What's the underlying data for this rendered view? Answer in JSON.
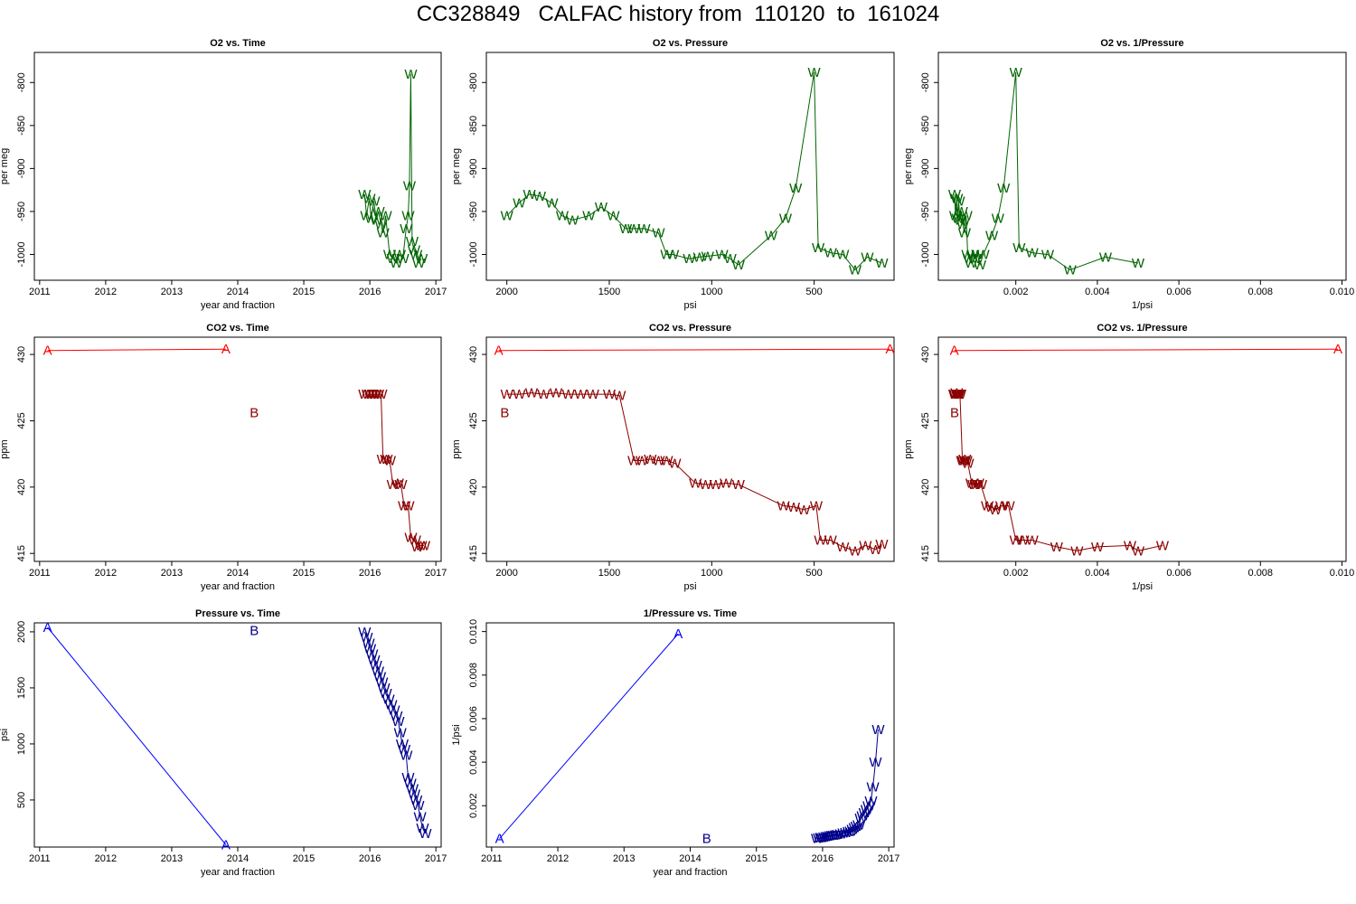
{
  "page": {
    "title": "CC328849   CALFAC history from  110120  to  161024"
  },
  "colors": {
    "o2": "#006400",
    "co2_w": "#8b0000",
    "co2_ab": "#ff0000",
    "pressure": "#00008b",
    "pressure_ab": "#0000ff"
  },
  "chart_data": [
    {
      "id": "o2_time",
      "type": "line",
      "title": "O2 vs. Time",
      "xlabel": "year and fraction",
      "ylabel": "per meg",
      "xlim": [
        2010.92,
        2017.08
      ],
      "ylim": [
        -1030,
        -765
      ],
      "reverse_x": false,
      "xticks": [
        2011,
        2012,
        2013,
        2014,
        2015,
        2016,
        2017
      ],
      "xtick_labels": [
        "2011",
        "2012",
        "2013",
        "2014",
        "2015",
        "2016",
        "2017"
      ],
      "yticks": [
        -800,
        -850,
        -900,
        -950,
        -1000
      ],
      "ytick_labels": [
        "-800",
        "-850",
        "-900",
        "-950",
        "-1000"
      ],
      "series": [
        {
          "name": "W",
          "color": "#006400",
          "marker": "W",
          "x": [
            2015.92,
            2015.95,
            2015.99,
            2016.02,
            2016.06,
            2016.1,
            2016.13,
            2016.17,
            2016.2,
            2016.24,
            2016.3,
            2016.35,
            2016.4,
            2016.45,
            2016.5,
            2016.55,
            2016.58,
            2016.6,
            2016.62,
            2016.64,
            2016.67,
            2016.7,
            2016.74,
            2016.78
          ],
          "y": [
            -930,
            -955,
            -935,
            -958,
            -938,
            -960,
            -950,
            -965,
            -975,
            -955,
            -1000,
            -1005,
            -1010,
            -1000,
            -1005,
            -970,
            -955,
            -920,
            -790,
            -985,
            -995,
            -1000,
            -1010,
            -1005
          ]
        }
      ]
    },
    {
      "id": "o2_pressure",
      "type": "line",
      "title": "O2 vs. Pressure",
      "xlabel": "psi",
      "ylabel": "per meg",
      "xlim": [
        2100,
        110
      ],
      "ylim": [
        -1030,
        -765
      ],
      "reverse_x": true,
      "xticks": [
        2000,
        1500,
        1000,
        500
      ],
      "xtick_labels": [
        "2000",
        "1500",
        "1000",
        "500"
      ],
      "yticks": [
        -800,
        -850,
        -900,
        -950,
        -1000
      ],
      "ytick_labels": [
        "-800",
        "-850",
        "-900",
        "-950",
        "-1000"
      ],
      "series": [
        {
          "name": "W",
          "color": "#006400",
          "marker": "W",
          "x": [
            2000,
            1940,
            1890,
            1840,
            1780,
            1730,
            1680,
            1600,
            1540,
            1480,
            1420,
            1380,
            1330,
            1260,
            1220,
            1190,
            1110,
            1060,
            1020,
            950,
            910,
            870,
            710,
            640,
            590,
            500,
            480,
            420,
            360,
            300,
            240,
            170
          ],
          "y": [
            -955,
            -940,
            -930,
            -932,
            -940,
            -955,
            -960,
            -955,
            -945,
            -955,
            -970,
            -970,
            -970,
            -975,
            -1000,
            -1000,
            -1005,
            -1003,
            -1002,
            -1000,
            -1005,
            -1012,
            -978,
            -958,
            -923,
            -788,
            -992,
            -998,
            -1000,
            -1018,
            -1003,
            -1010
          ]
        }
      ]
    },
    {
      "id": "o2_invpressure",
      "type": "line",
      "title": "O2 vs. 1/Pressure",
      "xlabel": "1/psi",
      "ylabel": "per meg",
      "xlim": [
        0.0001,
        0.0101
      ],
      "ylim": [
        -1030,
        -765
      ],
      "reverse_x": false,
      "xticks": [
        0.002,
        0.004,
        0.006,
        0.008,
        0.01
      ],
      "xtick_labels": [
        "0.002",
        "0.004",
        "0.006",
        "0.008",
        "0.010"
      ],
      "yticks": [
        -800,
        -850,
        -900,
        -950,
        -1000
      ],
      "ytick_labels": [
        "-800",
        "-850",
        "-900",
        "-950",
        "-1000"
      ],
      "series": [
        {
          "name": "W",
          "color": "#006400",
          "marker": "W",
          "x": [
            0.0005,
            0.00052,
            0.00055,
            0.00058,
            0.0006,
            0.00063,
            0.00067,
            0.0007,
            0.00074,
            0.00078,
            0.00082,
            0.00086,
            0.0009,
            0.00095,
            0.001,
            0.00106,
            0.00112,
            0.0012,
            0.00141,
            0.00156,
            0.0017,
            0.002,
            0.00208,
            0.0024,
            0.00278,
            0.00333,
            0.0042,
            0.005
          ],
          "y": [
            -930,
            -955,
            -935,
            -958,
            -938,
            -960,
            -950,
            -965,
            -975,
            -955,
            -1000,
            -1005,
            -1010,
            -1000,
            -1005,
            -1000,
            -1012,
            -1000,
            -978,
            -958,
            -923,
            -788,
            -992,
            -998,
            -1000,
            -1018,
            -1003,
            -1010
          ]
        }
      ]
    },
    {
      "id": "co2_time",
      "type": "line",
      "title": "CO2 vs. Time",
      "xlabel": "year and fraction",
      "ylabel": "ppm",
      "xlim": [
        2010.92,
        2017.08
      ],
      "ylim": [
        414.4,
        431.3
      ],
      "reverse_x": false,
      "xticks": [
        2011,
        2012,
        2013,
        2014,
        2015,
        2016,
        2017
      ],
      "xtick_labels": [
        "2011",
        "2012",
        "2013",
        "2014",
        "2015",
        "2016",
        "2017"
      ],
      "yticks": [
        415,
        420,
        425,
        430
      ],
      "ytick_labels": [
        "415",
        "420",
        "425",
        "430"
      ],
      "series": [
        {
          "name": "A",
          "color": "#ff0000",
          "marker": "A",
          "x": [
            2011.12,
            2013.82
          ],
          "y": [
            430.3,
            430.4
          ]
        },
        {
          "name": "B",
          "color": "#8b0000",
          "marker": "B",
          "line": false,
          "x": [
            2014.25
          ],
          "y": [
            425.6
          ]
        },
        {
          "name": "W",
          "color": "#8b0000",
          "marker": "W",
          "x": [
            2015.92,
            2015.97,
            2016.02,
            2016.07,
            2016.12,
            2016.17,
            2016.2,
            2016.25,
            2016.3,
            2016.35,
            2016.42,
            2016.47,
            2016.52,
            2016.58,
            2016.62,
            2016.68,
            2016.72,
            2016.77,
            2016.82
          ],
          "y": [
            427.0,
            427.0,
            427.0,
            427.0,
            427.0,
            427.0,
            422.1,
            422.1,
            422.0,
            420.2,
            420.3,
            420.2,
            418.6,
            418.6,
            416.2,
            416.0,
            415.5,
            415.6,
            415.6
          ]
        }
      ]
    },
    {
      "id": "co2_pressure",
      "type": "line",
      "title": "CO2 vs. Pressure",
      "xlabel": "psi",
      "ylabel": "ppm",
      "xlim": [
        2100,
        110
      ],
      "ylim": [
        414.4,
        431.3
      ],
      "reverse_x": true,
      "xticks": [
        2000,
        1500,
        1000,
        500
      ],
      "xtick_labels": [
        "2000",
        "1500",
        "1000",
        "500"
      ],
      "yticks": [
        415,
        420,
        425,
        430
      ],
      "ytick_labels": [
        "415",
        "420",
        "425",
        "430"
      ],
      "series": [
        {
          "name": "A",
          "color": "#ff0000",
          "marker": "A",
          "x": [
            2040,
            130
          ],
          "y": [
            430.3,
            430.4
          ]
        },
        {
          "name": "B",
          "color": "#8b0000",
          "marker": "B",
          "line": false,
          "x": [
            2010
          ],
          "y": [
            425.6
          ]
        },
        {
          "name": "W",
          "color": "#8b0000",
          "marker": "W",
          "x": [
            2000,
            1940,
            1880,
            1820,
            1760,
            1700,
            1640,
            1580,
            1500,
            1450,
            1380,
            1340,
            1300,
            1260,
            1220,
            1180,
            1080,
            1030,
            980,
            930,
            870,
            650,
            600,
            550,
            490,
            470,
            420,
            360,
            300,
            250,
            200,
            170
          ],
          "y": [
            427.0,
            427.0,
            427.1,
            427.0,
            427.1,
            427.0,
            427.0,
            427.0,
            427.0,
            426.9,
            422.0,
            422.0,
            422.1,
            422.0,
            422.0,
            421.8,
            420.3,
            420.2,
            420.2,
            420.3,
            420.2,
            418.6,
            418.5,
            418.3,
            418.6,
            416.0,
            416.0,
            415.5,
            415.2,
            415.6,
            415.3,
            415.7
          ]
        }
      ]
    },
    {
      "id": "co2_invpressure",
      "type": "line",
      "title": "CO2 vs. 1/Pressure",
      "xlabel": "1/psi",
      "ylabel": "ppm",
      "xlim": [
        0.0001,
        0.0101
      ],
      "ylim": [
        414.4,
        431.3
      ],
      "reverse_x": false,
      "xticks": [
        0.002,
        0.004,
        0.006,
        0.008,
        0.01
      ],
      "xtick_labels": [
        "0.002",
        "0.004",
        "0.006",
        "0.008",
        "0.010"
      ],
      "yticks": [
        415,
        420,
        425,
        430
      ],
      "ytick_labels": [
        "415",
        "420",
        "425",
        "430"
      ],
      "series": [
        {
          "name": "A",
          "color": "#ff0000",
          "marker": "A",
          "x": [
            0.00049,
            0.0099
          ],
          "y": [
            430.3,
            430.4
          ]
        },
        {
          "name": "B",
          "color": "#8b0000",
          "marker": "B",
          "line": false,
          "x": [
            0.0005
          ],
          "y": [
            425.6
          ]
        },
        {
          "name": "W",
          "color": "#8b0000",
          "marker": "W",
          "x": [
            0.0005,
            0.00052,
            0.00055,
            0.00057,
            0.0006,
            0.00063,
            0.00069,
            0.00072,
            0.00075,
            0.00078,
            0.00082,
            0.00092,
            0.00097,
            0.00102,
            0.00107,
            0.00114,
            0.0013,
            0.0014,
            0.0015,
            0.00165,
            0.00182,
            0.002,
            0.00217,
            0.0024,
            0.003,
            0.0035,
            0.004,
            0.0048,
            0.005,
            0.0056
          ],
          "y": [
            427.0,
            427.0,
            427.1,
            427.0,
            427.0,
            427.0,
            422.0,
            422.0,
            422.1,
            422.0,
            421.8,
            420.3,
            420.2,
            420.2,
            420.3,
            420.2,
            418.6,
            418.5,
            418.3,
            418.6,
            418.6,
            416.0,
            416.0,
            416.0,
            415.5,
            415.2,
            415.5,
            415.6,
            415.2,
            415.6
          ]
        }
      ]
    },
    {
      "id": "pressure_time",
      "type": "line",
      "title": "Pressure vs. Time",
      "xlabel": "year and fraction",
      "ylabel": "psi",
      "xlim": [
        2010.92,
        2017.08
      ],
      "ylim": [
        80,
        2080
      ],
      "reverse_x": false,
      "xticks": [
        2011,
        2012,
        2013,
        2014,
        2015,
        2016,
        2017
      ],
      "xtick_labels": [
        "2011",
        "2012",
        "2013",
        "2014",
        "2015",
        "2016",
        "2017"
      ],
      "yticks": [
        500,
        1000,
        1500,
        2000
      ],
      "ytick_labels": [
        "500",
        "1000",
        "1500",
        "2000"
      ],
      "series": [
        {
          "name": "A",
          "color": "#0000ff",
          "marker": "A",
          "x": [
            2011.12,
            2013.82
          ],
          "y": [
            2040,
            100
          ]
        },
        {
          "name": "B",
          "color": "#00008b",
          "marker": "B",
          "line": false,
          "x": [
            2014.25
          ],
          "y": [
            2010
          ]
        },
        {
          "name": "W",
          "color": "#00008b",
          "marker": "W",
          "x": [
            2015.92,
            2015.95,
            2015.98,
            2016.0,
            2016.03,
            2016.06,
            2016.09,
            2016.12,
            2016.15,
            2016.18,
            2016.21,
            2016.24,
            2016.28,
            2016.32,
            2016.36,
            2016.4,
            2016.43,
            2016.46,
            2016.49,
            2016.52,
            2016.55,
            2016.58,
            2016.61,
            2016.64,
            2016.67,
            2016.7,
            2016.73,
            2016.76,
            2016.8,
            2016.84
          ],
          "y": [
            2000,
            1950,
            1900,
            1850,
            1800,
            1750,
            1700,
            1650,
            1600,
            1550,
            1500,
            1450,
            1400,
            1350,
            1300,
            1250,
            1200,
            1100,
            1000,
            950,
            900,
            700,
            650,
            600,
            550,
            500,
            450,
            350,
            250,
            200
          ]
        }
      ]
    },
    {
      "id": "invpressure_time",
      "type": "line",
      "title": "1/Pressure vs. Time",
      "xlabel": "year and fraction",
      "ylabel": "1/psi",
      "xlim": [
        2010.92,
        2017.08
      ],
      "ylim": [
        0.0001,
        0.0104
      ],
      "reverse_x": false,
      "xticks": [
        2011,
        2012,
        2013,
        2014,
        2015,
        2016,
        2017
      ],
      "xtick_labels": [
        "2011",
        "2012",
        "2013",
        "2014",
        "2015",
        "2016",
        "2017"
      ],
      "yticks": [
        0.002,
        0.004,
        0.006,
        0.008,
        0.01
      ],
      "ytick_labels": [
        "0.002",
        "0.004",
        "0.006",
        "0.008",
        "0.010"
      ],
      "series": [
        {
          "name": "A",
          "color": "#0000ff",
          "marker": "A",
          "x": [
            2011.12,
            2013.82
          ],
          "y": [
            0.00049,
            0.0099
          ]
        },
        {
          "name": "B",
          "color": "#00008b",
          "marker": "B",
          "line": false,
          "x": [
            2014.25
          ],
          "y": [
            0.0005
          ]
        },
        {
          "name": "W",
          "color": "#00008b",
          "marker": "W",
          "x": [
            2015.92,
            2015.95,
            2015.98,
            2016.0,
            2016.03,
            2016.06,
            2016.09,
            2016.12,
            2016.15,
            2016.18,
            2016.21,
            2016.24,
            2016.28,
            2016.32,
            2016.36,
            2016.4,
            2016.43,
            2016.46,
            2016.49,
            2016.52,
            2016.55,
            2016.58,
            2016.61,
            2016.64,
            2016.67,
            2016.7,
            2016.73,
            2016.76,
            2016.8,
            2016.84
          ],
          "y": [
            0.0005,
            0.00051,
            0.00053,
            0.00054,
            0.00056,
            0.00057,
            0.00059,
            0.00061,
            0.00063,
            0.00065,
            0.00067,
            0.00069,
            0.00071,
            0.00074,
            0.00077,
            0.0008,
            0.00083,
            0.00091,
            0.001,
            0.00105,
            0.00111,
            0.00143,
            0.00154,
            0.00167,
            0.00182,
            0.002,
            0.00222,
            0.00286,
            0.004,
            0.0055
          ]
        }
      ]
    }
  ]
}
